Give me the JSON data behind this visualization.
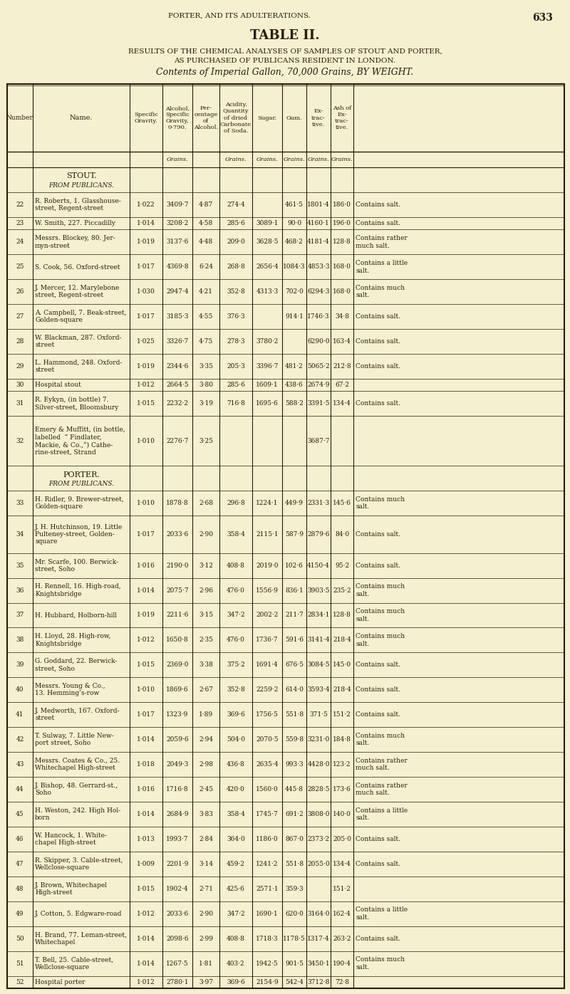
{
  "page_header": "PORTER, AND ITS ADULTERATIONS.",
  "page_number": "633",
  "title1": "TABLE II.",
  "title2": "RESULTS OF THE CHEMICAL ANALYSES OF SAMPLES OF STOUT AND PORTER,",
  "title3": "AS PURCHASED OF PUBLICANS RESIDENT IN LONDON.",
  "title4": "Contents of Imperial Gallon, 70,000 Grains, BY WEIGHT.",
  "bg_color": "#f5f0d0",
  "text_color": "#2a1a0a",
  "border_color": "#2a1a0a",
  "rows": [
    [
      "22",
      "R. Roberts, 1. Glasshouse-\nstreet, Regent-street",
      "1·022",
      "3409·7",
      "4·87",
      "274·4",
      "",
      "461·5",
      "1801·4",
      "186·0",
      "Contains salt."
    ],
    [
      "23",
      "W. Smith, 227. Piccadilly",
      "1·014",
      "3208·2",
      "4·58",
      "285·6",
      "3089·1",
      "90·0",
      "4160·1",
      "196·0",
      "Contains salt."
    ],
    [
      "24",
      "Messrs. Blockey, 80. Jer-\nmyn-street",
      "1·019",
      "3137·6",
      "4·48",
      "209·0",
      "3628·5",
      "468·2",
      "4181·4",
      "128·8",
      "Contains rather\nmuch salt."
    ],
    [
      "25",
      "S. Cook, 56. Oxford-street",
      "1·017",
      "4369·8",
      "6·24",
      "268·8",
      "2656·4",
      "1084·3",
      "4853·3",
      "168·0",
      "Contains a little\nsalt."
    ],
    [
      "26",
      "J. Mercer, 12. Marylebone\nstreet, Regent-street",
      "1·030",
      "2947·4",
      "4·21",
      "352·8",
      "4313·3",
      "702·0",
      "6294·3",
      "168·0",
      "Contains much\nsalt."
    ],
    [
      "27",
      "A. Campbell, 7. Beak-street,\nGolden-square",
      "1·017",
      "3185·3",
      "4·55",
      "376·3",
      "",
      "914·1",
      "1746·3",
      "34·8",
      "Contains salt."
    ],
    [
      "28",
      "W. Blackman, 287. Oxford-\nstreet",
      "1·025",
      "3326·7",
      "4·75",
      "278·3",
      "3780·2",
      "",
      "6290·0",
      "163·4",
      "Contains salt."
    ],
    [
      "29",
      "L. Hammond, 248. Oxford-\nstreet",
      "1·019",
      "2344·6",
      "3·35",
      "205·3",
      "3396·7",
      "481·2",
      "5065·2",
      "212·8",
      "Contains salt."
    ],
    [
      "30",
      "Hospital stout",
      "1·012",
      "2664·5",
      "3·80",
      "285·6",
      "1609·1",
      "438·6",
      "2674·9",
      "67·2",
      ""
    ],
    [
      "31",
      "R. Eykyn, (in bottle) 7.\nSilver-street, Bloomsbury",
      "1·015",
      "2232·2",
      "3·19",
      "716·8",
      "1695·6",
      "588·2",
      "3391·5",
      "134·4",
      "Contains salt."
    ],
    [
      "32",
      "Emery & Muffitt, (in bottle,\nlabelled  “ Findlater,\nMackie, & Co.,”) Cathe-\nrine-street, Strand",
      "1·010",
      "2276·7",
      "3·25",
      "",
      "",
      "",
      "3687·7",
      "",
      ""
    ],
    [
      "33",
      "H. Ridler, 9. Brewer-street,\nGolden-square",
      "1·010",
      "1878·8",
      "2·68",
      "296·8",
      "1224·1",
      "449·9",
      "2331·3",
      "145·6",
      "Contains much\nsalt."
    ],
    [
      "34",
      "J. H. Hutchinson, 19. Little\nPulteney-street, Golden-\nsquare",
      "1·017",
      "2033·6",
      "2·90",
      "358·4",
      "2115·1",
      "587·9",
      "2879·6",
      "84·0",
      "Contains salt."
    ],
    [
      "35",
      "Mr. Scarfe, 100. Berwick-\nstreet, Soho",
      "1·016",
      "2190·0",
      "3·12",
      "408·8",
      "2019·0",
      "102·6",
      "4150·4",
      "95·2",
      "Contains salt."
    ],
    [
      "36",
      "H. Rennell, 16. High-road,\nKnightsbridge",
      "1·014",
      "2075·7",
      "2·96",
      "476·0",
      "1556·9",
      "836·1",
      "3903·5",
      "235·2",
      "Contains much\nsalt."
    ],
    [
      "37",
      "H. Hubbard, Holborn-hill",
      "1·019",
      "2211·6",
      "3·15",
      "347·2",
      "2002·2",
      "211·7",
      "2834·1",
      "128·8",
      "Contains much\nsalt."
    ],
    [
      "38",
      "H. Lloyd, 28. High-row,\nKnightsbridge",
      "1·012",
      "1650·8",
      "2·35",
      "476·0",
      "1736·7",
      "591·6",
      "3141·4",
      "218·4",
      "Contains much\nsalt."
    ],
    [
      "39",
      "G. Goddard, 22. Berwick-\nstreet, Soho",
      "1·015",
      "2369·0",
      "3·38",
      "375·2",
      "1691·4",
      "676·5",
      "3084·5",
      "145·0",
      "Contains salt."
    ],
    [
      "40",
      "Messrs. Young & Co.,\n13. Hemming’s-row",
      "1·010",
      "1869·6",
      "2·67",
      "352·8",
      "2259·2",
      "614·0",
      "3593·4",
      "218·4",
      "Contains salt."
    ],
    [
      "41",
      "J. Medworth, 167. Oxford-\nstreet",
      "1·017",
      "1323·9",
      "1·89",
      "369·6",
      "1756·5",
      "551·8",
      "371·5",
      "151·2",
      "Contains salt."
    ],
    [
      "42",
      "T. Sulway, 7. Little New-\nport street, Soho",
      "1·014",
      "2059·6",
      "2·94",
      "504·0",
      "2070·5",
      "559·8",
      "3231·0",
      "184·8",
      "Contains much\nsalt."
    ],
    [
      "43",
      "Messrs. Coates & Co., 25.\nWhitechapel High-street",
      "1·018",
      "2049·3",
      "2·98",
      "436·8",
      "2635·4",
      "993·3",
      "4428·0",
      "123·2",
      "Contains rather\nmuch salt."
    ],
    [
      "44",
      "J. Bishop, 48. Gerrard-st.,\nSoho",
      "1·016",
      "1716·8",
      "2·45",
      "420·0",
      "1560·0",
      "445·8",
      "2828·5",
      "173·6",
      "Contains rather\nmuch salt."
    ],
    [
      "45",
      "H. Weston, 242. High Hol-\nborn",
      "1·014",
      "2684·9",
      "3·83",
      "358·4",
      "1745·7",
      "691·2",
      "3808·0",
      "140·0",
      "Contains a little\nsalt."
    ],
    [
      "46",
      "W. Hancock, 1. White-\nchapel High-street",
      "1·013",
      "1993·7",
      "2·84",
      "364·0",
      "1186·0",
      "867·0",
      "2373·2",
      "205·0",
      "Contains salt."
    ],
    [
      "47",
      "R. Skipper, 3. Cable-street,\nWellclose-square",
      "1·009",
      "2201·9",
      "3·14",
      "459·2",
      "1241·2",
      "551·8",
      "2055·0",
      "134·4",
      "Contains salt."
    ],
    [
      "48",
      "J. Brown, Whitechapel\nHigh-street",
      "1·015",
      "1902·4",
      "2·71",
      "425·6",
      "2571·1",
      "359·3",
      "",
      "151·2",
      ""
    ],
    [
      "49",
      "J. Cotton, 5. Edgware-road",
      "1·012",
      "2033·6",
      "2·90",
      "347·2",
      "1690·1",
      "620·0",
      "3164·0",
      "162·4",
      "Contains a little\nsalt."
    ],
    [
      "50",
      "H. Brand, 77. Leman-street,\nWhitechapel",
      "1·014",
      "2098·6",
      "2·99",
      "408·8",
      "1718·3",
      "1178·5",
      "1317·4",
      "263·2",
      "Contains salt."
    ],
    [
      "51",
      "T. Bell, 25. Cable-street,\nWellclose-square",
      "1·014",
      "1267·5",
      "1·81",
      "403·2",
      "1942·5",
      "901·5",
      "3450·1",
      "190·4",
      "Contains much\nsalt."
    ],
    [
      "52",
      "Hospital porter",
      "1·012",
      "2780·1",
      "3·97",
      "369·6",
      "2154·9",
      "542·4",
      "3712·8",
      "72·8",
      ""
    ]
  ]
}
